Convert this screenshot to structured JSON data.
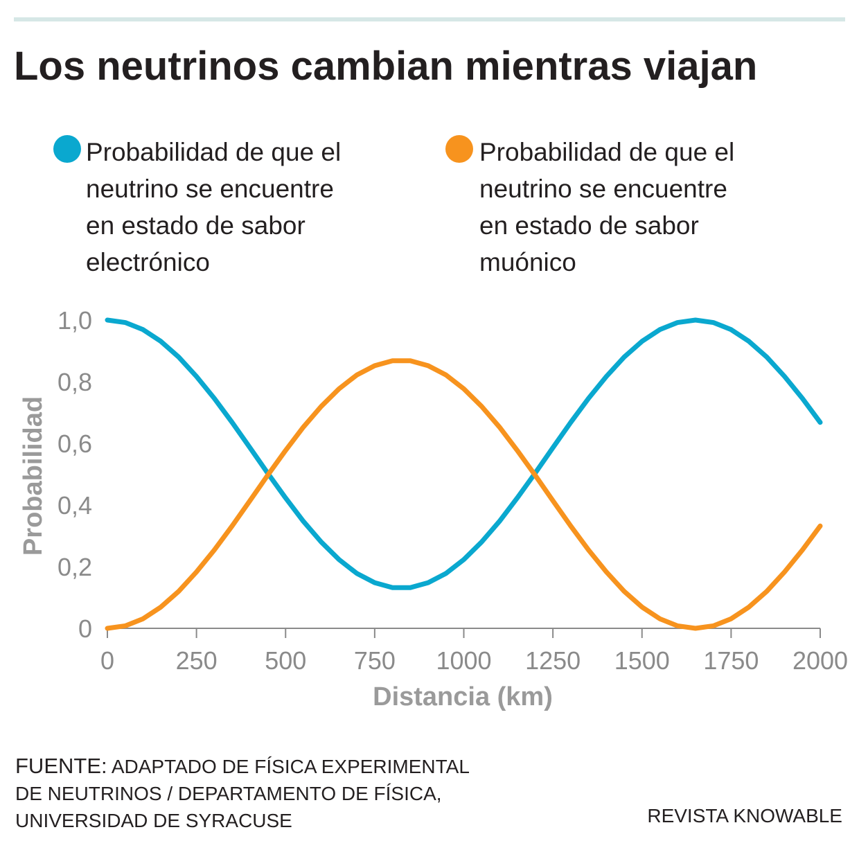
{
  "chart_data": {
    "type": "line",
    "title": "Los neutrinos cambian mientras viajan",
    "x_label": "Distancia (km)",
    "y_label": "Probabilidad",
    "x": [
      0,
      50,
      100,
      150,
      200,
      250,
      300,
      350,
      400,
      450,
      500,
      550,
      600,
      650,
      700,
      750,
      800,
      850,
      900,
      950,
      1000,
      1050,
      1100,
      1150,
      1200,
      1250,
      1300,
      1350,
      1400,
      1450,
      1500,
      1550,
      1600,
      1650,
      1700,
      1750,
      1800,
      1850,
      1900,
      1950,
      2000
    ],
    "series": [
      {
        "name": "Probabilidad de que el\nneutrino se encuentre\nen estado de sabor\nelectrónico",
        "color": "#0aa8cf",
        "values": [
          1,
          0.992,
          0.969,
          0.931,
          0.88,
          0.817,
          0.746,
          0.668,
          0.586,
          0.503,
          0.423,
          0.347,
          0.28,
          0.223,
          0.178,
          0.148,
          0.132,
          0.132,
          0.148,
          0.178,
          0.223,
          0.28,
          0.347,
          0.423,
          0.503,
          0.586,
          0.668,
          0.746,
          0.817,
          0.88,
          0.931,
          0.969,
          0.992,
          1,
          0.992,
          0.969,
          0.931,
          0.88,
          0.817,
          0.746,
          0.668
        ]
      },
      {
        "name": "Probabilidad de que el\nneutrino se encuentre\nen estado de sabor\nmuónico",
        "color": "#f7931e",
        "values": [
          0,
          0.008,
          0.031,
          0.069,
          0.12,
          0.183,
          0.254,
          0.332,
          0.414,
          0.497,
          0.577,
          0.653,
          0.72,
          0.777,
          0.822,
          0.852,
          0.868,
          0.868,
          0.852,
          0.822,
          0.777,
          0.72,
          0.653,
          0.577,
          0.497,
          0.414,
          0.332,
          0.254,
          0.183,
          0.12,
          0.069,
          0.031,
          0.008,
          0,
          0.008,
          0.031,
          0.069,
          0.12,
          0.183,
          0.254,
          0.332
        ]
      }
    ],
    "xlim": [
      0,
      2000
    ],
    "xticks": [
      0,
      250,
      500,
      750,
      1000,
      1250,
      1500,
      1750,
      2000
    ],
    "ylim": [
      0,
      1
    ],
    "yticks": [
      0,
      {
        "value": 0.2,
        "label": "0,2"
      },
      {
        "value": 0.4,
        "label": "0,4"
      },
      {
        "value": 0.6,
        "label": "0,6"
      },
      {
        "value": 0.8,
        "label": "0,8"
      },
      {
        "value": 1,
        "label": "1,0"
      }
    ],
    "grid": false,
    "source_label": "FUENTE:",
    "source": "ADAPTADO DE FÍSICA EXPERIMENTAL\nDE NEUTRINOS / DEPARTAMENTO DE FÍSICA,\nUNIVERSIDAD DE SYRACUSE",
    "credit": "REVISTA KNOWABLE"
  }
}
